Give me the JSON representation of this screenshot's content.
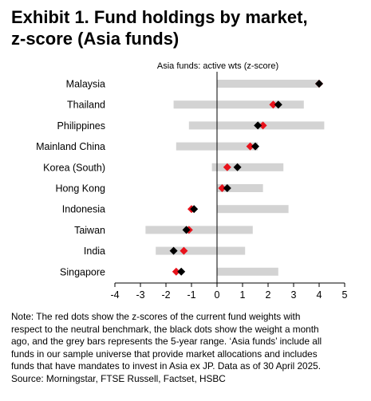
{
  "title_lines": [
    "Exhibit 1. Fund holdings by market,",
    "z-score (Asia funds)"
  ],
  "chart_data": {
    "type": "range-dot",
    "subtitle": "Asia funds: active wts (z-score)",
    "xlim": [
      -4,
      5
    ],
    "xticks": [
      -4,
      -3,
      -2,
      -1,
      0,
      1,
      2,
      3,
      4,
      5
    ],
    "colors": {
      "range": "#d3d3d3",
      "current": "#e8131c",
      "month_ago": "#000000",
      "axis": "#000000"
    },
    "categories": [
      "Malaysia",
      "Thailand",
      "Philippines",
      "Mainland China",
      "Korea (South)",
      "Hong Kong",
      "Indonesia",
      "Taiwan",
      "India",
      "Singapore"
    ],
    "series": [
      {
        "role": "5-year range",
        "low": [
          0.0,
          -1.7,
          -1.1,
          -1.6,
          -0.2,
          0.0,
          0.0,
          -2.8,
          -2.4,
          0.0
        ],
        "high": [
          4.0,
          3.4,
          4.2,
          1.6,
          2.6,
          1.8,
          2.8,
          1.4,
          1.1,
          2.4
        ]
      },
      {
        "role": "current fund weights",
        "values": [
          4.0,
          2.2,
          1.8,
          1.3,
          0.4,
          0.2,
          -1.0,
          -1.1,
          -1.3,
          -1.6
        ]
      },
      {
        "role": "weight a month ago",
        "values": [
          4.0,
          2.4,
          1.6,
          1.5,
          0.8,
          0.4,
          -0.9,
          -1.2,
          -1.7,
          -1.4
        ]
      }
    ]
  },
  "note_lines": [
    "Note: The red dots show the z-scores of the current fund weights with",
    "respect to the neutral benchmark, the black dots show the weight a month",
    "ago, and the grey bars represents the 5-year range. ‘Asia funds’ include all",
    "funds in our sample universe that provide market allocations and includes",
    "funds that have mandates to invest in Asia ex JP. Data as of 30 April 2025.",
    "Source: Morningstar, FTSE Russell, Factset, HSBC"
  ]
}
